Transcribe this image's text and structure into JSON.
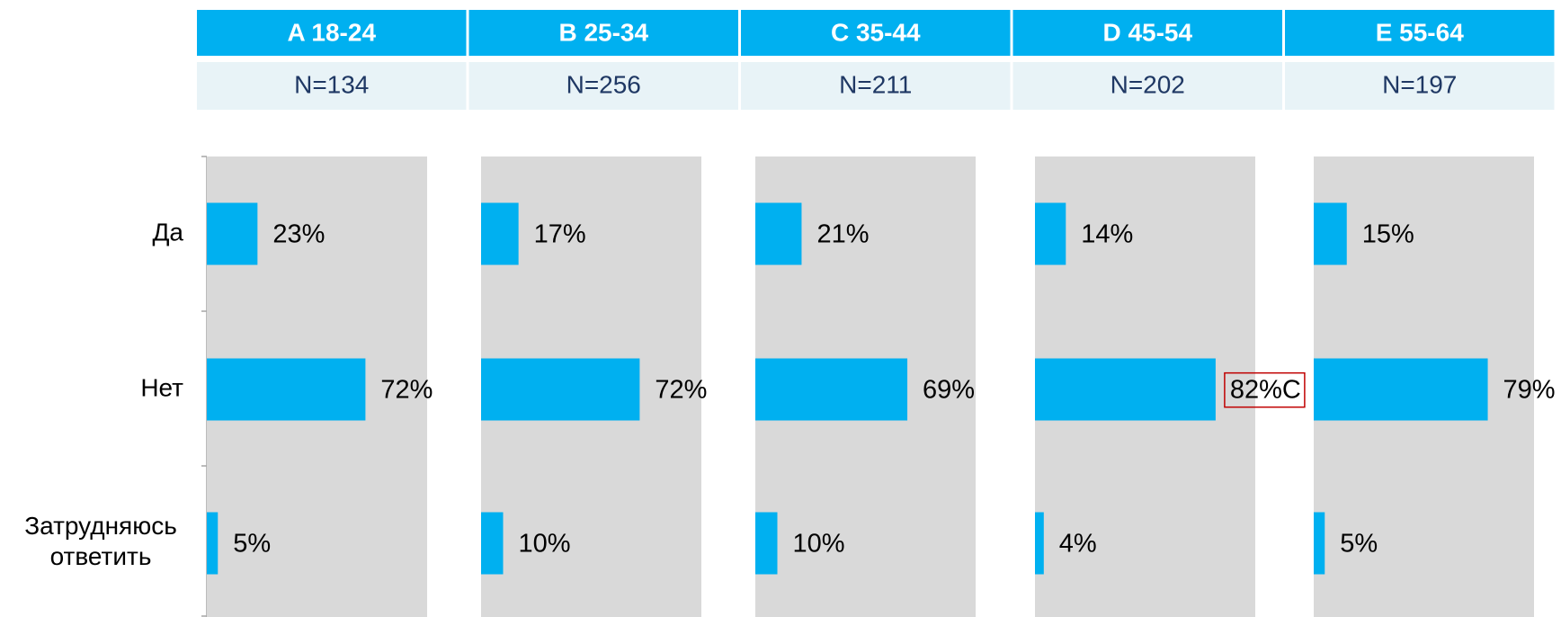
{
  "chart_data": {
    "type": "barh",
    "categories": [
      "Да",
      "Нет",
      "Затрудняюсь ответить"
    ],
    "xlim": [
      0,
      100
    ],
    "highlight_color": "#c00000",
    "series": [
      {
        "name": "A 18-24",
        "subtitle": "N=134",
        "color": "#00b0f0",
        "values": [
          23,
          72,
          5
        ],
        "value_labels": [
          "23%",
          "72%",
          "5%"
        ],
        "highlighted": []
      },
      {
        "name": "B 25-34",
        "subtitle": "N=256",
        "color": "#00b0f0",
        "values": [
          17,
          72,
          10
        ],
        "value_labels": [
          "17%",
          "72%",
          "10%"
        ],
        "highlighted": []
      },
      {
        "name": "C 35-44",
        "subtitle": "N=211",
        "color": "#00b0f0",
        "values": [
          21,
          69,
          10
        ],
        "value_labels": [
          "21%",
          "69%",
          "10%"
        ],
        "highlighted": []
      },
      {
        "name": "D 45-54",
        "subtitle": "N=202",
        "color": "#00b0f0",
        "values": [
          14,
          82,
          4
        ],
        "value_labels": [
          "14%",
          "82%C",
          "4%"
        ],
        "highlighted": [
          1
        ]
      },
      {
        "name": "E 55-64",
        "subtitle": "N=197",
        "color": "#00b0f0",
        "values": [
          15,
          79,
          5
        ],
        "value_labels": [
          "15%",
          "79%",
          "5%"
        ],
        "highlighted": []
      }
    ]
  }
}
